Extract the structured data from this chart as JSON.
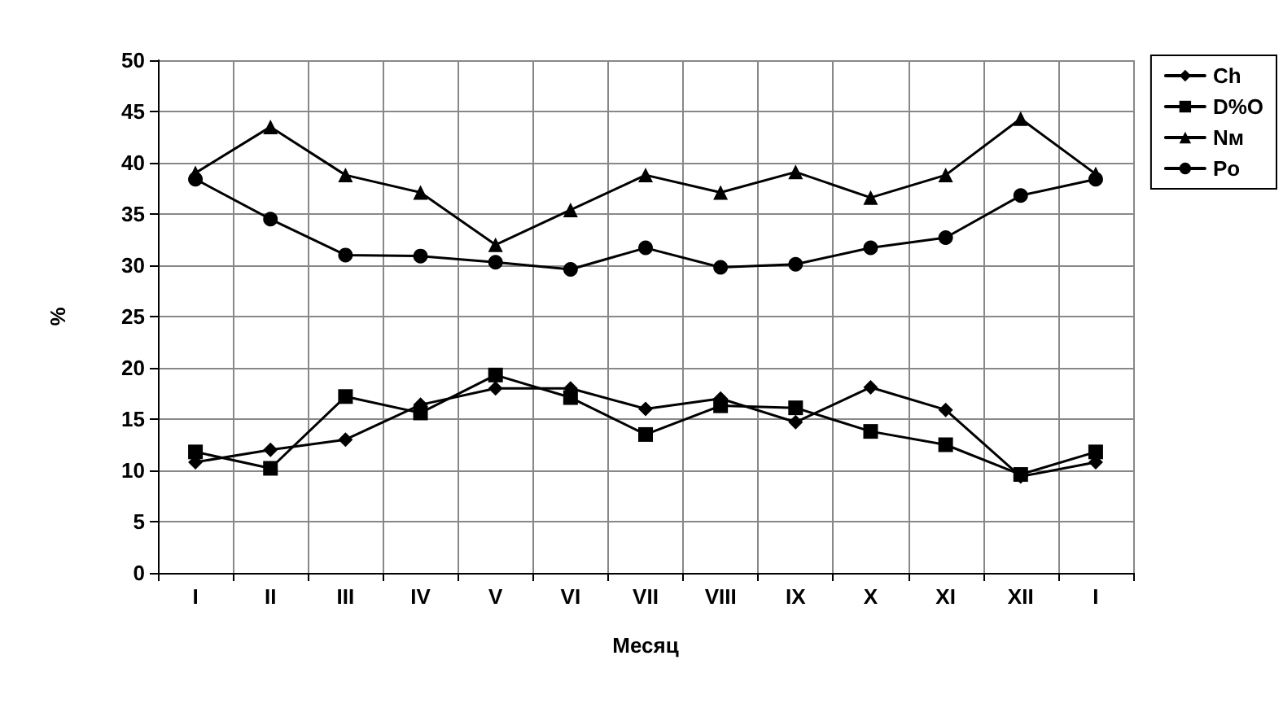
{
  "chart_data": {
    "type": "line",
    "xlabel": "Месяц",
    "ylabel": "%",
    "categories": [
      "I",
      "II",
      "III",
      "IV",
      "V",
      "VI",
      "VII",
      "VIII",
      "IX",
      "X",
      "XI",
      "XII",
      "I"
    ],
    "series": [
      {
        "name": "Ch",
        "color": "#000000",
        "marker": "diamond",
        "values": [
          10.8,
          12,
          13,
          16.4,
          18,
          18,
          16,
          17,
          14.7,
          18.1,
          15.9,
          9.4,
          10.8
        ]
      },
      {
        "name": "D%O",
        "color": "#000000",
        "marker": "square",
        "values": [
          11.8,
          10.2,
          17.2,
          15.6,
          19.3,
          17.1,
          13.5,
          16.3,
          16.1,
          13.8,
          12.5,
          9.6,
          11.8
        ]
      },
      {
        "name": "Nм",
        "color": "#000000",
        "marker": "triangle",
        "values": [
          39,
          43.5,
          38.8,
          37.1,
          32,
          35.4,
          38.8,
          37.1,
          39.1,
          36.6,
          38.8,
          44.3,
          38.9
        ]
      },
      {
        "name": "Po",
        "color": "#000000",
        "marker": "circle",
        "values": [
          38.4,
          34.5,
          31,
          30.9,
          30.3,
          29.6,
          31.7,
          29.8,
          30.1,
          31.7,
          32.7,
          36.8,
          38.4
        ]
      }
    ],
    "ylim": [
      0,
      50
    ],
    "yticks": [
      0,
      5,
      10,
      15,
      20,
      25,
      30,
      35,
      40,
      45,
      50
    ],
    "grid": true,
    "legend": "right",
    "line_style": "solid"
  }
}
